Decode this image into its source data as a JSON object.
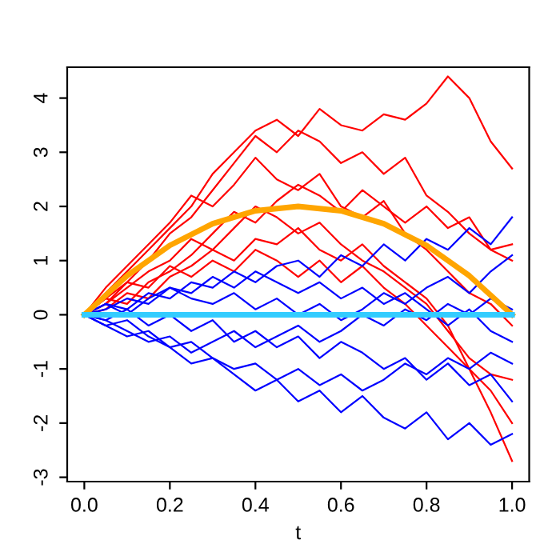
{
  "chart_data": {
    "type": "line",
    "xlabel": "t",
    "x": [
      0,
      0.05,
      0.1,
      0.15,
      0.2,
      0.25,
      0.3,
      0.35,
      0.4,
      0.45,
      0.5,
      0.55,
      0.6,
      0.65,
      0.7,
      0.75,
      0.8,
      0.85,
      0.9,
      0.95,
      1.0
    ],
    "series": [
      {
        "color": "#ff0000",
        "values": [
          0,
          0.4,
          0.8,
          1.2,
          1.6,
          2.0,
          2.6,
          3.0,
          3.4,
          3.6,
          3.3,
          3.8,
          3.5,
          3.4,
          3.7,
          3.6,
          3.9,
          4.4,
          4.0,
          3.2,
          2.7
        ]
      },
      {
        "color": "#ff0000",
        "values": [
          0,
          0.3,
          0.6,
          1.0,
          1.5,
          1.8,
          2.3,
          2.8,
          3.3,
          3.0,
          3.4,
          3.2,
          2.8,
          3.0,
          2.6,
          2.9,
          2.2,
          1.9,
          1.5,
          1.2,
          1.3
        ]
      },
      {
        "color": "#ff0000",
        "values": [
          0,
          0.5,
          0.9,
          1.3,
          1.7,
          2.2,
          2.0,
          2.4,
          2.9,
          2.5,
          2.3,
          2.6,
          2.0,
          1.8,
          2.1,
          1.5,
          1.2,
          0.8,
          0.4,
          0.2,
          -0.2
        ]
      },
      {
        "color": "#ff0000",
        "values": [
          0,
          0.2,
          0.5,
          0.8,
          1.0,
          1.4,
          1.2,
          1.6,
          2.0,
          1.8,
          1.5,
          1.7,
          1.3,
          1.0,
          0.8,
          0.5,
          0.2,
          -0.3,
          -0.8,
          -1.1,
          -1.2
        ]
      },
      {
        "color": "#ff0000",
        "values": [
          0,
          0.1,
          0.4,
          0.3,
          0.7,
          0.9,
          1.2,
          1.0,
          1.4,
          1.3,
          1.6,
          1.2,
          1.0,
          1.3,
          0.9,
          0.6,
          0.3,
          -0.2,
          -1.0,
          -1.8,
          -2.7
        ]
      },
      {
        "color": "#ff0000",
        "values": [
          0,
          0.3,
          0.2,
          0.6,
          0.8,
          1.1,
          1.5,
          1.9,
          1.7,
          2.1,
          2.4,
          2.2,
          1.9,
          2.3,
          2.0,
          1.7,
          2.0,
          1.6,
          1.8,
          1.2,
          1.0
        ]
      },
      {
        "color": "#ff0000",
        "values": [
          0,
          0.2,
          0.6,
          0.5,
          0.9,
          0.7,
          1.0,
          0.8,
          1.2,
          1.0,
          0.7,
          1.0,
          0.6,
          0.9,
          0.5,
          0.2,
          -0.2,
          -0.6,
          -1.0,
          -1.4,
          -2.0
        ]
      },
      {
        "color": "#0000ff",
        "values": [
          0,
          -0.2,
          -0.4,
          -0.3,
          -0.6,
          -0.9,
          -0.8,
          -1.1,
          -1.4,
          -1.2,
          -1.6,
          -1.4,
          -1.8,
          -1.5,
          -1.9,
          -2.1,
          -1.8,
          -2.3,
          -2.0,
          -2.4,
          -2.2
        ]
      },
      {
        "color": "#0000ff",
        "values": [
          0,
          0.2,
          0.1,
          0.4,
          0.3,
          0.6,
          0.5,
          0.8,
          0.6,
          0.9,
          1.0,
          0.7,
          1.1,
          0.9,
          1.3,
          1.0,
          1.4,
          1.2,
          1.6,
          1.3,
          1.8
        ]
      },
      {
        "color": "#0000ff",
        "values": [
          0,
          -0.1,
          0.1,
          -0.2,
          0.0,
          -0.3,
          -0.1,
          -0.5,
          -0.3,
          -0.6,
          -0.4,
          -0.8,
          -0.5,
          -0.7,
          -1.0,
          -0.8,
          -1.2,
          -0.9,
          -1.3,
          -1.1,
          -1.6
        ]
      },
      {
        "color": "#0000ff",
        "values": [
          0,
          0.1,
          0.3,
          0.2,
          0.5,
          0.3,
          0.2,
          0.4,
          0.1,
          0.3,
          0.0,
          0.2,
          -0.1,
          0.1,
          0.4,
          0.2,
          0.5,
          0.7,
          0.4,
          0.8,
          1.1
        ]
      },
      {
        "color": "#0000ff",
        "values": [
          0,
          -0.1,
          -0.3,
          -0.5,
          -0.4,
          -0.7,
          -0.5,
          -0.3,
          -0.6,
          -0.4,
          -0.2,
          -0.5,
          -0.3,
          0.0,
          -0.2,
          0.1,
          -0.1,
          0.2,
          0.0,
          0.3,
          0.1
        ]
      },
      {
        "color": "#0000ff",
        "values": [
          0,
          0.2,
          0.0,
          0.3,
          0.5,
          0.4,
          0.7,
          0.5,
          0.8,
          0.6,
          0.4,
          0.6,
          0.3,
          0.5,
          0.2,
          0.4,
          0.1,
          -0.2,
          0.1,
          -0.3,
          -0.5
        ]
      },
      {
        "color": "#0000ff",
        "values": [
          0,
          -0.2,
          -0.1,
          -0.4,
          -0.6,
          -0.5,
          -0.8,
          -1.0,
          -0.9,
          -1.2,
          -1.0,
          -1.3,
          -1.1,
          -1.4,
          -1.2,
          -0.9,
          -1.1,
          -0.8,
          -1.0,
          -0.7,
          -0.9
        ]
      },
      {
        "color": "#ffa500",
        "x": [
          0,
          0.1,
          0.2,
          0.3,
          0.4,
          0.5,
          0.6,
          0.7,
          0.8,
          0.9,
          1.0
        ],
        "values": [
          0,
          0.72,
          1.28,
          1.68,
          1.92,
          2.0,
          1.92,
          1.68,
          1.28,
          0.72,
          0
        ]
      },
      {
        "color": "#33ccff",
        "x": [
          0,
          1.0
        ],
        "values": [
          0,
          0
        ]
      }
    ],
    "xlim": [
      -0.04,
      1.04
    ],
    "ylim": [
      -3.08,
      4.57
    ],
    "xticks": [
      {
        "value": 0,
        "label": "0.0"
      },
      0.2,
      0.4,
      0.6,
      0.8,
      {
        "value": 1,
        "label": "1.0"
      }
    ],
    "yticks": [
      -3,
      -2,
      -1,
      0,
      1,
      2,
      3,
      4
    ],
    "grid": false,
    "legend": false,
    "marker": "none",
    "line_style": "solid"
  }
}
